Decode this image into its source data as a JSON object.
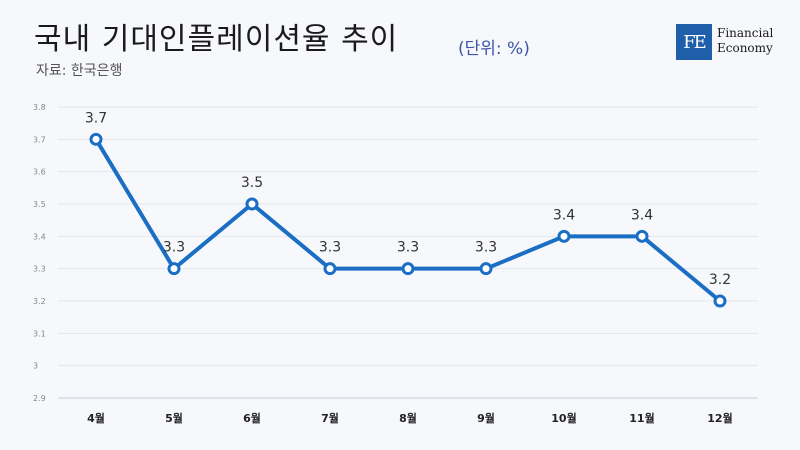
{
  "header": {
    "title": "국내 기대인플레이션율 추이",
    "unit": "(단위: %)",
    "source": "자료: 한국은행"
  },
  "logo": {
    "mark": "FE",
    "line1": "Financial",
    "line2": "Economy",
    "color": "#1f5faa"
  },
  "chart_data": {
    "type": "line",
    "categories": [
      "4월",
      "5월",
      "6월",
      "7월",
      "8월",
      "9월",
      "10월",
      "11월",
      "12월"
    ],
    "series": [
      {
        "values": [
          3.7,
          3.3,
          3.5,
          3.3,
          3.3,
          3.3,
          3.4,
          3.4,
          3.2
        ]
      }
    ],
    "data_labels": [
      "3.7",
      "3.3",
      "3.5",
      "3.3",
      "3.3",
      "3.3",
      "3.4",
      "3.4",
      "3.2"
    ],
    "ylim": [
      2.9,
      3.8
    ],
    "yticks": [
      "2.9",
      "3",
      "3.1",
      "3.2",
      "3.3",
      "3.4",
      "3.5",
      "3.6",
      "3.7",
      "3.8"
    ],
    "grid": true,
    "line_color": "#1a6fc4"
  }
}
